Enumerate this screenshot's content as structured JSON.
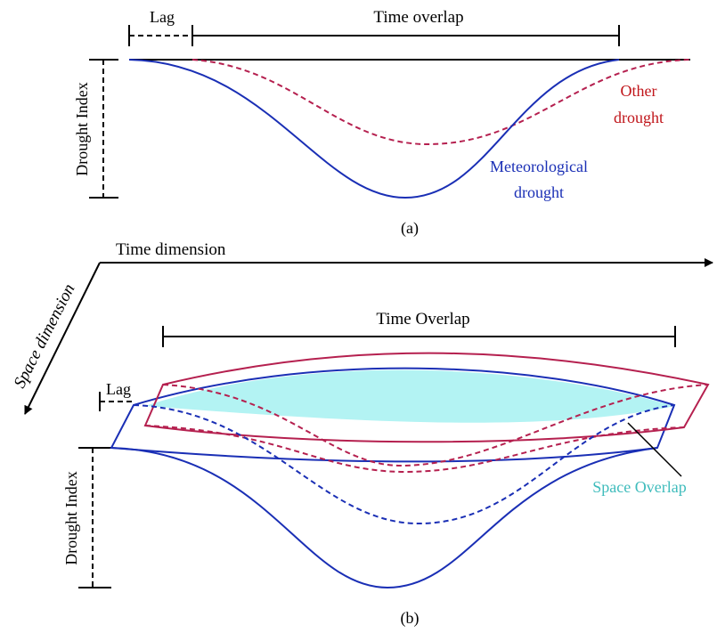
{
  "panel_a": {
    "lag_label": "Lag",
    "time_overlap_label": "Time overlap",
    "y_axis_label": "Drought Index",
    "other_drought_label_line1": "Other",
    "other_drought_label_line2": "drought",
    "meteorological_label_line1": "Meteorological",
    "meteorological_label_line2": "drought",
    "caption": "(a)"
  },
  "panel_b": {
    "time_dimension_label": "Time dimension",
    "space_dimension_label": "Space dimension",
    "time_overlap_label": "Time Overlap",
    "lag_label": "Lag",
    "y_axis_label": "Drought Index",
    "space_overlap_label": "Space Overlap",
    "caption": "(b)"
  },
  "colors": {
    "meteorological": "#1a2fb5",
    "other": "#b5204f",
    "space_overlap_fill": "#b3f3f3",
    "space_overlap_text": "#3fbcbc",
    "other_label_text": "#c0151a",
    "axis": "#000000"
  }
}
